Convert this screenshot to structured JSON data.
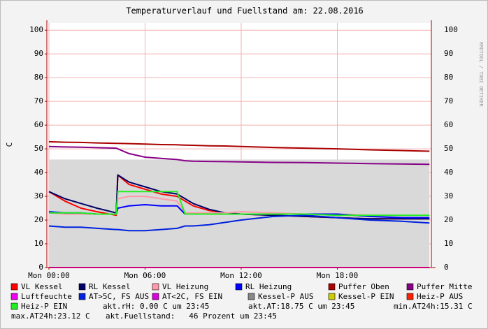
{
  "chart_data": {
    "type": "line",
    "title": "Temperaturverlauf und Fuellstand am: 22.08.2016",
    "watermark": "RRDTOOL / TOBI OETIKER",
    "y_label": "C",
    "x": [
      0,
      1,
      2,
      3,
      4.2,
      4.3,
      5,
      6,
      7,
      8,
      8.5,
      9,
      10,
      11,
      12,
      14,
      16,
      18,
      20,
      22,
      23.75
    ],
    "xlim": [
      -0.13,
      23.87
    ],
    "xticks": [
      {
        "value": 0,
        "label": "Mon 00:00"
      },
      {
        "value": 6,
        "label": "Mon 06:00"
      },
      {
        "value": 12,
        "label": "Mon 12:00"
      },
      {
        "value": 18,
        "label": "Mon 18:00"
      }
    ],
    "ylim": [
      0,
      103
    ],
    "yticks": [
      0,
      10,
      20,
      30,
      40,
      50,
      60,
      70,
      80,
      90,
      100
    ],
    "grid": true,
    "series": [
      {
        "name": "VL Kessel",
        "color": "#ff0000",
        "values": [
          32,
          28,
          25,
          23.5,
          22,
          39,
          35,
          33,
          31,
          30,
          28,
          26,
          24,
          23,
          22.5,
          22,
          21.5,
          21,
          20.5,
          20.5,
          20.5
        ]
      },
      {
        "name": "RL Kessel",
        "color": "#000066",
        "values": [
          32,
          29,
          27,
          25,
          23,
          39,
          36,
          34,
          32,
          31,
          29,
          27,
          24.5,
          23,
          22.5,
          22,
          21.5,
          21,
          20.5,
          20.5,
          20.5
        ]
      },
      {
        "name": "VL Heizung",
        "color": "#ff99aa",
        "values": [
          23,
          22.5,
          22.5,
          22.5,
          22.5,
          29,
          30,
          30,
          29,
          28,
          23,
          23,
          23,
          23,
          23.5,
          23,
          22.5,
          22.5,
          22,
          22,
          22
        ]
      },
      {
        "name": "RL Heizung",
        "color": "#0000ff",
        "values": [
          23.5,
          23,
          23,
          22.5,
          22.5,
          25,
          26,
          26.5,
          26,
          26,
          22.5,
          22.5,
          22.5,
          22.5,
          22.5,
          22.5,
          22.5,
          22.5,
          21.5,
          21,
          21
        ]
      },
      {
        "name": "Puffer Oben",
        "color": "#aa0000",
        "values": [
          53,
          52.8,
          52.7,
          52.5,
          52.3,
          52.3,
          52.2,
          52,
          51.8,
          51.7,
          51.6,
          51.5,
          51.3,
          51.2,
          51,
          50.6,
          50.3,
          50,
          49.6,
          49.3,
          49
        ]
      },
      {
        "name": "Puffer Mitte",
        "color": "#880088",
        "values": [
          51,
          50.8,
          50.7,
          50.5,
          50.3,
          50,
          48,
          46.5,
          46,
          45.5,
          45,
          44.8,
          44.7,
          44.6,
          44.5,
          44.3,
          44.2,
          44,
          43.8,
          43.6,
          43.5
        ]
      },
      {
        "name": "Luftfeuchte",
        "color": "#ee00ee",
        "values": [
          0,
          0,
          0,
          0,
          0,
          0,
          0,
          0,
          0,
          0,
          0,
          0,
          0,
          0,
          0,
          0,
          0,
          0,
          0,
          0,
          0
        ]
      },
      {
        "name": "AT>5C, FS AUS",
        "color": "#0022dd",
        "values": [
          17.5,
          17,
          17,
          16.5,
          16,
          16,
          15.5,
          15.5,
          16,
          16.5,
          17.5,
          17.5,
          18,
          19,
          20,
          21.5,
          22,
          21,
          20,
          19.5,
          18.75
        ]
      },
      {
        "name": "AT<2C, FS EIN",
        "color": "#dd00dd",
        "values": [
          null,
          null,
          null,
          null,
          null,
          null,
          null,
          null,
          null,
          null,
          null,
          null,
          null,
          null,
          null,
          null,
          null,
          null,
          null,
          null,
          null
        ]
      },
      {
        "name": "Kessel-P AUS",
        "color": "#888888",
        "area": true,
        "values": [
          45.5,
          45.5,
          45.5,
          45.5,
          45.5,
          45.5,
          45.5,
          45.5,
          45.5,
          45.5,
          45.5,
          45.5,
          45.5,
          45.5,
          45.5,
          45.5,
          45.5,
          45.5,
          45.5,
          45.5,
          45.5
        ]
      },
      {
        "name": "Kessel-P EIN",
        "color": "#cccc00",
        "values": [
          null,
          null,
          null,
          null,
          null,
          null,
          null,
          null,
          null,
          null,
          null,
          null,
          null,
          null,
          null,
          null,
          null,
          null,
          null,
          null,
          null
        ]
      },
      {
        "name": "Heiz-P AUS",
        "color": "#ff2200",
        "values": [
          null,
          null,
          null,
          null,
          null,
          null,
          null,
          null,
          null,
          null,
          null,
          null,
          null,
          null,
          null,
          null,
          null,
          null,
          null,
          null,
          null
        ]
      },
      {
        "name": "Heiz-P EIN",
        "color": "#22ee22",
        "values": [
          23,
          23,
          23,
          22.5,
          22.5,
          32,
          32,
          32,
          32,
          32,
          22.5,
          22.5,
          22.5,
          22.5,
          22.5,
          22.5,
          22.5,
          22,
          22,
          22,
          22
        ]
      }
    ],
    "notes": [
      "akt.rH: 0.00 C um 23:45",
      "akt.AT:18.75 C um 23:45",
      "min.AT24h:15.31 C",
      "max.AT24h:23.12 C",
      "akt.Fuellstand:   46 Prozent um 23:45"
    ]
  }
}
